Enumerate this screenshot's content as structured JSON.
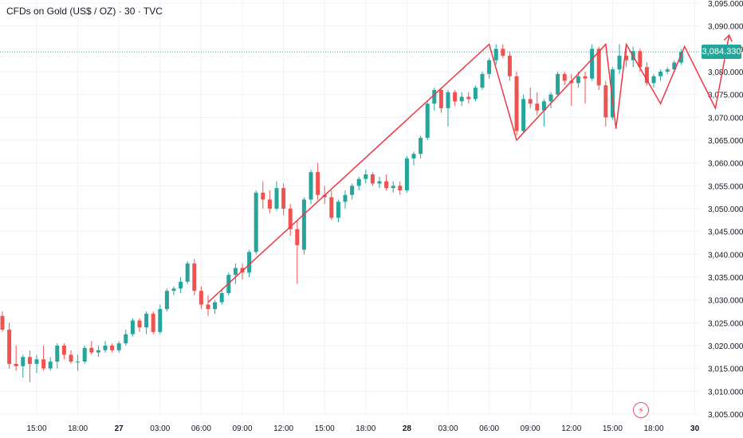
{
  "header": {
    "symbol": "CFDs on Gold (US$ / OZ)",
    "interval": "30",
    "source": "TVC",
    "separator": " · "
  },
  "colors": {
    "up": "#26a69a",
    "down": "#ef5350",
    "drawing": "#f23645",
    "axis_text": "#131722",
    "grid": "#f0f3fa",
    "last_price_line": "#26a69a"
  },
  "last_price": {
    "value": 3084.33,
    "label": "3,084.330"
  },
  "alert": {
    "icon": "lightning-icon"
  },
  "chart_data": {
    "type": "candlestick",
    "ylim": [
      3005,
      3095
    ],
    "price_ticks": [
      "3,005.000",
      "3,010.000",
      "3,015.000",
      "3,020.000",
      "3,025.000",
      "3,030.000",
      "3,035.000",
      "3,040.000",
      "3,045.000",
      "3,050.000",
      "3,055.000",
      "3,060.000",
      "3,065.000",
      "3,070.000",
      "3,075.000",
      "3,080.000",
      "3,085.000",
      "3,090.000",
      "3,095.000"
    ],
    "price_tick_values": [
      3005,
      3010,
      3015,
      3020,
      3025,
      3030,
      3035,
      3040,
      3045,
      3050,
      3055,
      3060,
      3065,
      3070,
      3075,
      3080,
      3085,
      3090,
      3095
    ],
    "time_ticks": [
      {
        "label": "15:00",
        "bar": 5,
        "bold": false
      },
      {
        "label": "18:00",
        "bar": 11,
        "bold": false
      },
      {
        "label": "27",
        "bar": 17,
        "bold": true
      },
      {
        "label": "03:00",
        "bar": 23,
        "bold": false
      },
      {
        "label": "06:00",
        "bar": 29,
        "bold": false
      },
      {
        "label": "09:00",
        "bar": 35,
        "bold": false
      },
      {
        "label": "12:00",
        "bar": 41,
        "bold": false
      },
      {
        "label": "15:00",
        "bar": 47,
        "bold": false
      },
      {
        "label": "18:00",
        "bar": 53,
        "bold": false
      },
      {
        "label": "28",
        "bar": 59,
        "bold": true
      },
      {
        "label": "03:00",
        "bar": 65,
        "bold": false
      },
      {
        "label": "06:00",
        "bar": 71,
        "bold": false
      },
      {
        "label": "09:00",
        "bar": 77,
        "bold": false
      },
      {
        "label": "12:00",
        "bar": 83,
        "bold": false
      },
      {
        "label": "15:00",
        "bar": 89,
        "bold": false
      },
      {
        "label": "18:00",
        "bar": 95,
        "bold": false
      },
      {
        "label": "30",
        "bar": 101,
        "bold": true
      }
    ],
    "candles": [
      {
        "o": 3026.5,
        "h": 3027.5,
        "l": 3023.0,
        "c": 3023.5
      },
      {
        "o": 3023.5,
        "h": 3025.0,
        "l": 3015.0,
        "c": 3016.0
      },
      {
        "o": 3016.0,
        "h": 3020.0,
        "l": 3014.5,
        "c": 3015.5
      },
      {
        "o": 3015.5,
        "h": 3018.0,
        "l": 3013.0,
        "c": 3017.5
      },
      {
        "o": 3017.5,
        "h": 3019.0,
        "l": 3012.0,
        "c": 3016.0
      },
      {
        "o": 3016.0,
        "h": 3018.0,
        "l": 3014.0,
        "c": 3017.0
      },
      {
        "o": 3017.0,
        "h": 3020.0,
        "l": 3014.5,
        "c": 3015.0
      },
      {
        "o": 3015.0,
        "h": 3017.5,
        "l": 3014.5,
        "c": 3016.5
      },
      {
        "o": 3016.5,
        "h": 3020.5,
        "l": 3015.0,
        "c": 3020.0
      },
      {
        "o": 3020.0,
        "h": 3020.5,
        "l": 3017.0,
        "c": 3018.0
      },
      {
        "o": 3018.0,
        "h": 3019.0,
        "l": 3016.0,
        "c": 3016.5
      },
      {
        "o": 3016.5,
        "h": 3018.0,
        "l": 3014.5,
        "c": 3016.5
      },
      {
        "o": 3016.5,
        "h": 3020.0,
        "l": 3016.0,
        "c": 3019.5
      },
      {
        "o": 3019.5,
        "h": 3021.0,
        "l": 3018.0,
        "c": 3018.5
      },
      {
        "o": 3018.5,
        "h": 3020.0,
        "l": 3017.5,
        "c": 3019.0
      },
      {
        "o": 3019.0,
        "h": 3021.0,
        "l": 3018.5,
        "c": 3020.0
      },
      {
        "o": 3020.0,
        "h": 3020.5,
        "l": 3018.5,
        "c": 3019.0
      },
      {
        "o": 3019.0,
        "h": 3021.0,
        "l": 3018.5,
        "c": 3020.5
      },
      {
        "o": 3020.5,
        "h": 3023.5,
        "l": 3020.0,
        "c": 3022.5
      },
      {
        "o": 3022.5,
        "h": 3026.0,
        "l": 3022.0,
        "c": 3025.5
      },
      {
        "o": 3025.5,
        "h": 3026.0,
        "l": 3023.0,
        "c": 3024.0
      },
      {
        "o": 3024.0,
        "h": 3027.5,
        "l": 3022.5,
        "c": 3027.0
      },
      {
        "o": 3027.0,
        "h": 3027.5,
        "l": 3022.5,
        "c": 3023.0
      },
      {
        "o": 3023.0,
        "h": 3029.0,
        "l": 3022.5,
        "c": 3028.0
      },
      {
        "o": 3028.0,
        "h": 3032.5,
        "l": 3027.5,
        "c": 3032.0
      },
      {
        "o": 3032.0,
        "h": 3033.0,
        "l": 3031.0,
        "c": 3032.5
      },
      {
        "o": 3032.5,
        "h": 3035.0,
        "l": 3031.5,
        "c": 3034.0
      },
      {
        "o": 3034.0,
        "h": 3038.5,
        "l": 3033.5,
        "c": 3038.0
      },
      {
        "o": 3038.0,
        "h": 3039.0,
        "l": 3031.0,
        "c": 3032.0
      },
      {
        "o": 3032.0,
        "h": 3033.0,
        "l": 3028.0,
        "c": 3029.0
      },
      {
        "o": 3029.0,
        "h": 3031.0,
        "l": 3026.5,
        "c": 3028.0
      },
      {
        "o": 3028.0,
        "h": 3030.0,
        "l": 3027.0,
        "c": 3029.5
      },
      {
        "o": 3029.5,
        "h": 3032.5,
        "l": 3029.0,
        "c": 3031.5
      },
      {
        "o": 3031.5,
        "h": 3036.0,
        "l": 3031.0,
        "c": 3035.5
      },
      {
        "o": 3035.5,
        "h": 3038.0,
        "l": 3033.5,
        "c": 3037.0
      },
      {
        "o": 3037.0,
        "h": 3038.0,
        "l": 3034.5,
        "c": 3036.0
      },
      {
        "o": 3036.0,
        "h": 3041.0,
        "l": 3035.0,
        "c": 3040.5
      },
      {
        "o": 3040.5,
        "h": 3054.0,
        "l": 3040.0,
        "c": 3053.5
      },
      {
        "o": 3053.5,
        "h": 3056.0,
        "l": 3050.0,
        "c": 3052.0
      },
      {
        "o": 3052.0,
        "h": 3054.0,
        "l": 3049.0,
        "c": 3050.0
      },
      {
        "o": 3050.0,
        "h": 3056.0,
        "l": 3049.5,
        "c": 3054.5
      },
      {
        "o": 3054.5,
        "h": 3055.5,
        "l": 3048.5,
        "c": 3050.0
      },
      {
        "o": 3050.0,
        "h": 3051.0,
        "l": 3044.0,
        "c": 3045.5
      },
      {
        "o": 3045.5,
        "h": 3047.5,
        "l": 3033.5,
        "c": 3042.0
      },
      {
        "o": 3041.0,
        "h": 3052.5,
        "l": 3040.0,
        "c": 3052.0
      },
      {
        "o": 3052.0,
        "h": 3058.5,
        "l": 3051.0,
        "c": 3058.0
      },
      {
        "o": 3058.0,
        "h": 3060.0,
        "l": 3052.0,
        "c": 3053.0
      },
      {
        "o": 3053.0,
        "h": 3055.0,
        "l": 3051.0,
        "c": 3052.5
      },
      {
        "o": 3052.5,
        "h": 3054.0,
        "l": 3047.5,
        "c": 3048.0
      },
      {
        "o": 3048.0,
        "h": 3052.0,
        "l": 3047.0,
        "c": 3051.5
      },
      {
        "o": 3051.5,
        "h": 3054.0,
        "l": 3050.0,
        "c": 3053.0
      },
      {
        "o": 3053.0,
        "h": 3055.5,
        "l": 3052.0,
        "c": 3055.0
      },
      {
        "o": 3055.0,
        "h": 3057.0,
        "l": 3054.0,
        "c": 3056.5
      },
      {
        "o": 3056.5,
        "h": 3058.5,
        "l": 3055.5,
        "c": 3057.5
      },
      {
        "o": 3057.5,
        "h": 3058.0,
        "l": 3055.0,
        "c": 3055.5
      },
      {
        "o": 3055.5,
        "h": 3057.0,
        "l": 3054.5,
        "c": 3056.0
      },
      {
        "o": 3056.0,
        "h": 3057.5,
        "l": 3054.0,
        "c": 3054.5
      },
      {
        "o": 3054.5,
        "h": 3056.0,
        "l": 3053.5,
        "c": 3055.0
      },
      {
        "o": 3055.0,
        "h": 3056.0,
        "l": 3053.0,
        "c": 3054.0
      },
      {
        "o": 3054.0,
        "h": 3061.5,
        "l": 3053.5,
        "c": 3061.0
      },
      {
        "o": 3061.0,
        "h": 3062.5,
        "l": 3059.5,
        "c": 3062.0
      },
      {
        "o": 3062.0,
        "h": 3066.0,
        "l": 3061.0,
        "c": 3065.5
      },
      {
        "o": 3065.5,
        "h": 3073.5,
        "l": 3065.0,
        "c": 3073.0
      },
      {
        "o": 3073.0,
        "h": 3076.5,
        "l": 3071.5,
        "c": 3076.0
      },
      {
        "o": 3076.0,
        "h": 3076.5,
        "l": 3071.0,
        "c": 3072.0
      },
      {
        "o": 3072.0,
        "h": 3076.0,
        "l": 3068.0,
        "c": 3075.5
      },
      {
        "o": 3075.5,
        "h": 3076.0,
        "l": 3072.5,
        "c": 3073.5
      },
      {
        "o": 3073.5,
        "h": 3075.5,
        "l": 3072.5,
        "c": 3074.5
      },
      {
        "o": 3074.5,
        "h": 3075.5,
        "l": 3073.0,
        "c": 3074.0
      },
      {
        "o": 3074.0,
        "h": 3077.0,
        "l": 3073.5,
        "c": 3076.5
      },
      {
        "o": 3076.5,
        "h": 3080.0,
        "l": 3076.0,
        "c": 3079.5
      },
      {
        "o": 3079.5,
        "h": 3083.0,
        "l": 3078.5,
        "c": 3082.5
      },
      {
        "o": 3082.5,
        "h": 3086.0,
        "l": 3081.5,
        "c": 3085.0
      },
      {
        "o": 3085.0,
        "h": 3086.0,
        "l": 3083.0,
        "c": 3083.5
      },
      {
        "o": 3083.5,
        "h": 3084.5,
        "l": 3078.0,
        "c": 3079.0
      },
      {
        "o": 3079.0,
        "h": 3080.0,
        "l": 3066.0,
        "c": 3067.0
      },
      {
        "o": 3067.0,
        "h": 3075.0,
        "l": 3066.5,
        "c": 3074.0
      },
      {
        "o": 3074.0,
        "h": 3076.5,
        "l": 3072.0,
        "c": 3073.0
      },
      {
        "o": 3073.0,
        "h": 3075.5,
        "l": 3070.5,
        "c": 3071.5
      },
      {
        "o": 3071.5,
        "h": 3074.0,
        "l": 3068.0,
        "c": 3073.5
      },
      {
        "o": 3073.5,
        "h": 3075.5,
        "l": 3072.0,
        "c": 3075.0
      },
      {
        "o": 3075.0,
        "h": 3080.0,
        "l": 3074.5,
        "c": 3079.5
      },
      {
        "o": 3079.5,
        "h": 3080.0,
        "l": 3077.0,
        "c": 3078.0
      },
      {
        "o": 3078.0,
        "h": 3079.5,
        "l": 3072.5,
        "c": 3077.5
      },
      {
        "o": 3077.5,
        "h": 3080.0,
        "l": 3076.5,
        "c": 3079.0
      },
      {
        "o": 3079.0,
        "h": 3080.0,
        "l": 3073.0,
        "c": 3078.5
      },
      {
        "o": 3078.5,
        "h": 3086.0,
        "l": 3078.0,
        "c": 3085.0
      },
      {
        "o": 3085.0,
        "h": 3085.5,
        "l": 3076.0,
        "c": 3077.0
      },
      {
        "o": 3077.0,
        "h": 3078.0,
        "l": 3068.0,
        "c": 3070.0
      },
      {
        "o": 3070.0,
        "h": 3081.0,
        "l": 3069.5,
        "c": 3080.5
      },
      {
        "o": 3080.5,
        "h": 3086.0,
        "l": 3079.5,
        "c": 3083.5
      },
      {
        "o": 3083.5,
        "h": 3086.0,
        "l": 3081.0,
        "c": 3082.5
      },
      {
        "o": 3082.5,
        "h": 3085.5,
        "l": 3081.0,
        "c": 3084.5
      },
      {
        "o": 3084.5,
        "h": 3085.0,
        "l": 3080.0,
        "c": 3081.0
      },
      {
        "o": 3081.0,
        "h": 3082.0,
        "l": 3077.0,
        "c": 3077.5
      },
      {
        "o": 3077.5,
        "h": 3079.5,
        "l": 3076.5,
        "c": 3079.0
      },
      {
        "o": 3079.0,
        "h": 3080.5,
        "l": 3078.0,
        "c": 3080.0
      },
      {
        "o": 3080.0,
        "h": 3081.0,
        "l": 3079.5,
        "c": 3080.5
      },
      {
        "o": 3080.5,
        "h": 3082.5,
        "l": 3080.0,
        "c": 3082.0
      },
      {
        "o": 3082.0,
        "h": 3085.0,
        "l": 3081.5,
        "c": 3084.33
      }
    ],
    "projection": {
      "points": [
        {
          "bar": 30,
          "price": 3029.5
        },
        {
          "bar": 71,
          "price": 3086.0
        },
        {
          "bar": 75,
          "price": 3065.0
        },
        {
          "bar": 88,
          "price": 3086.0
        },
        {
          "bar": 89.5,
          "price": 3067.5
        },
        {
          "bar": 91,
          "price": 3086.0
        },
        {
          "bar": 96,
          "price": 3073.0
        },
        {
          "bar": 99.5,
          "price": 3085.5
        },
        {
          "bar": 104,
          "price": 3072.0
        },
        {
          "bar": 106,
          "price": 3088.0
        }
      ],
      "arrow": true
    }
  }
}
